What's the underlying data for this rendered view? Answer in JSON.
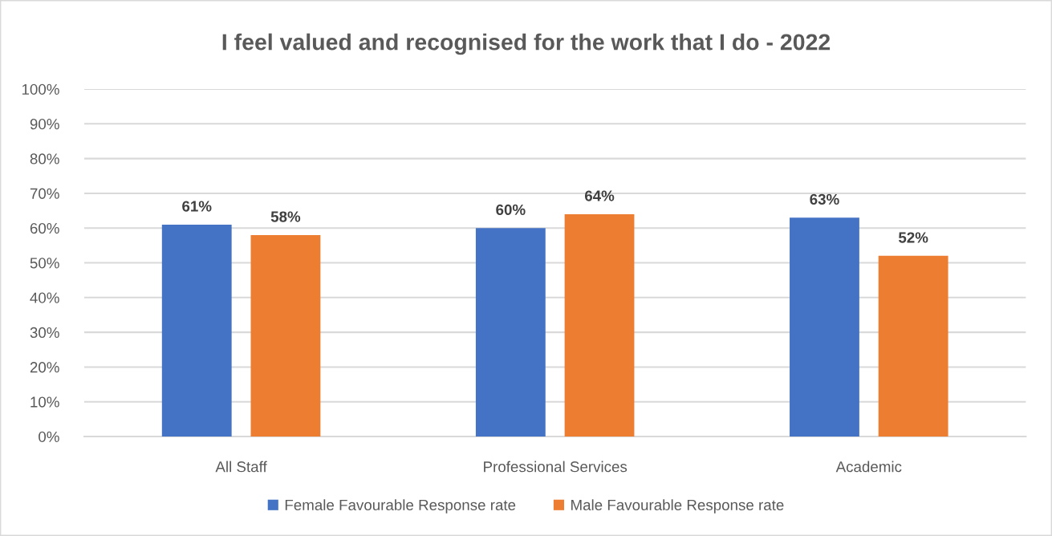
{
  "chart_data": {
    "type": "bar",
    "title": "I feel valued and recognised for the work that I do - 2022",
    "categories": [
      "All Staff",
      "Professional Services",
      "Academic"
    ],
    "series": [
      {
        "name": "Female Favourable Response rate",
        "color": "#4472c4",
        "values": [
          61,
          60,
          63
        ],
        "value_labels": [
          "61%",
          "60%",
          "63%"
        ]
      },
      {
        "name": "Male Favourable Response rate",
        "color": "#ed7d31",
        "values": [
          58,
          64,
          52
        ],
        "value_labels": [
          "58%",
          "64%",
          "52%"
        ]
      }
    ],
    "ylim": [
      0,
      100
    ],
    "yticks": [
      {
        "value": 0,
        "label": "0%"
      },
      {
        "value": 10,
        "label": "10%"
      },
      {
        "value": 20,
        "label": "20%"
      },
      {
        "value": 30,
        "label": "30%"
      },
      {
        "value": 40,
        "label": "40%"
      },
      {
        "value": 50,
        "label": "50%"
      },
      {
        "value": 60,
        "label": "60%"
      },
      {
        "value": 70,
        "label": "70%"
      },
      {
        "value": 80,
        "label": "80%"
      },
      {
        "value": 90,
        "label": "90%"
      },
      {
        "value": 100,
        "label": "100%"
      }
    ],
    "grid": "y",
    "legend": "bottom"
  }
}
